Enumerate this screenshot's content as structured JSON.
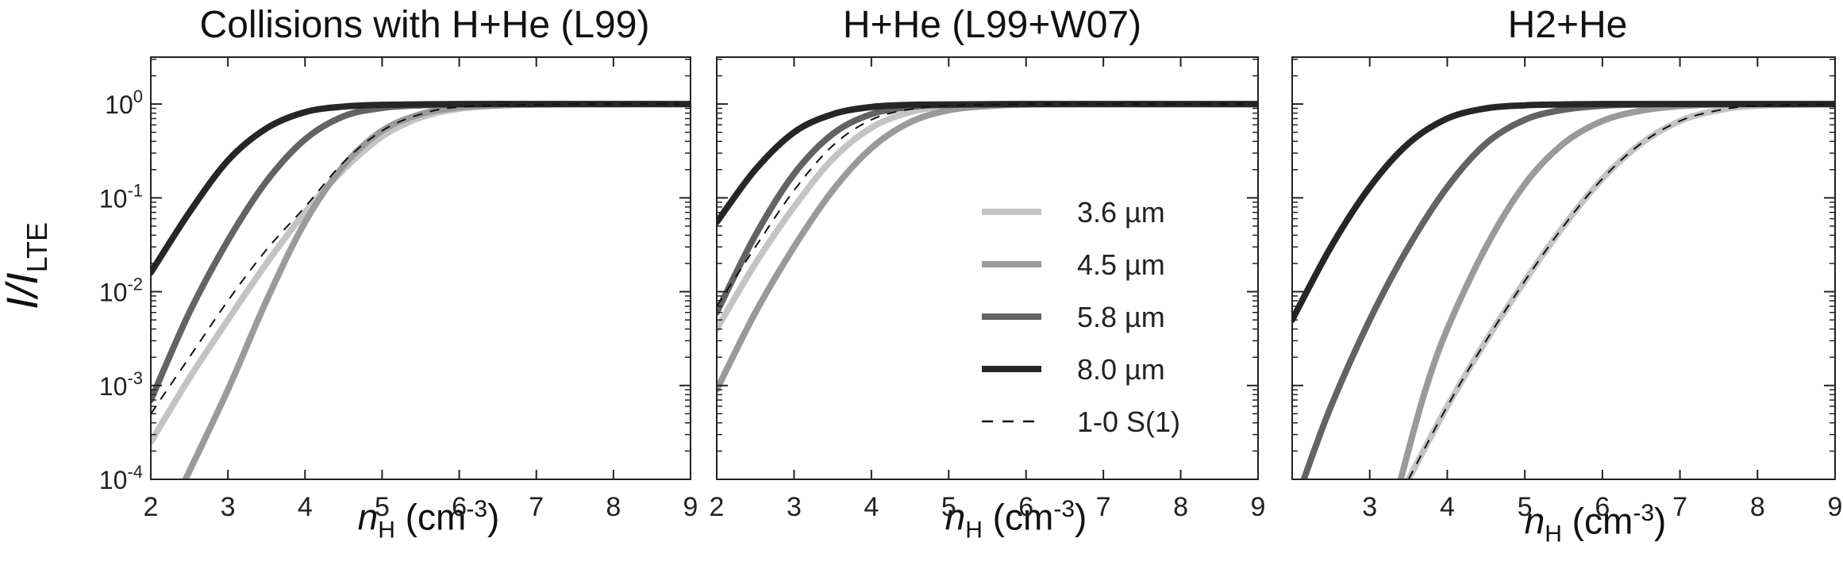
{
  "ylabel_main": "I/I",
  "ylabel_sub": "LTE",
  "xlabel_main": "n",
  "xlabel_sub": "H",
  "xlabel_units": " (cm",
  "xlabel_exp": "-3",
  "xlabel_close": ")",
  "legend": [
    {
      "label": "3.6 µm",
      "color": "#c4c4c4"
    },
    {
      "label": "4.5 µm",
      "color": "#9a9a9a"
    },
    {
      "label": "5.8 µm",
      "color": "#636363"
    },
    {
      "label": "8.0 µm",
      "color": "#262626"
    },
    {
      "label": "1-0 S(1)",
      "color": "#111111",
      "dashed": true
    }
  ],
  "chart_data": [
    {
      "type": "line",
      "title": "Collisions with H+He (L99)",
      "xlabel": "nH (cm-3)",
      "ylabel": "I/I_LTE",
      "xlim": [
        2,
        9
      ],
      "ylim_log10": [
        -4,
        0.5
      ],
      "yscale": "log",
      "xticks": [
        "2",
        "3",
        "4",
        "5",
        "6",
        "7",
        "8",
        "9"
      ],
      "series": [
        {
          "name": "8.0 µm",
          "x": [
            2,
            2.5,
            3,
            3.5,
            4,
            4.5,
            5,
            6,
            7,
            8,
            9
          ],
          "y": [
            0.016,
            0.07,
            0.25,
            0.55,
            0.82,
            0.94,
            0.98,
            1,
            1,
            1,
            1
          ]
        },
        {
          "name": "5.8 µm",
          "x": [
            2,
            2.5,
            3,
            3.5,
            4,
            4.5,
            5,
            5.5,
            6,
            7,
            8,
            9
          ],
          "y": [
            0.0007,
            0.006,
            0.035,
            0.15,
            0.42,
            0.74,
            0.91,
            0.97,
            0.99,
            1,
            1,
            1
          ]
        },
        {
          "name": "4.5 µm",
          "x": [
            2.45,
            3,
            3.5,
            4,
            4.5,
            5,
            5.5,
            6,
            6.5,
            7,
            8,
            9
          ],
          "y": [
            0.0001,
            0.0009,
            0.008,
            0.055,
            0.22,
            0.52,
            0.78,
            0.92,
            0.97,
            0.99,
            1,
            1
          ]
        },
        {
          "name": "3.6 µm",
          "x": [
            2,
            2.5,
            3,
            3.5,
            4,
            4.5,
            5,
            5.5,
            6,
            6.5,
            7,
            8,
            9
          ],
          "y": [
            0.00025,
            0.0012,
            0.005,
            0.02,
            0.07,
            0.2,
            0.45,
            0.72,
            0.89,
            0.96,
            0.99,
            1,
            1
          ]
        },
        {
          "name": "1-0 S(1)",
          "x": [
            2,
            2.5,
            3,
            3.5,
            4,
            4.5,
            5,
            5.5,
            6,
            7,
            8,
            9
          ],
          "y": [
            0.0005,
            0.002,
            0.008,
            0.028,
            0.08,
            0.24,
            0.52,
            0.78,
            0.93,
            0.99,
            1,
            1
          ]
        }
      ]
    },
    {
      "type": "line",
      "title": "H+He (L99+W07)",
      "xlabel": "nH (cm-3)",
      "ylabel": "I/I_LTE",
      "xlim": [
        2,
        9
      ],
      "ylim_log10": [
        -4,
        0.5
      ],
      "yscale": "log",
      "xticks": [
        "2",
        "3",
        "4",
        "5",
        "6",
        "7",
        "8",
        "9"
      ],
      "series": [
        {
          "name": "8.0 µm",
          "x": [
            2,
            2.5,
            3,
            3.5,
            4,
            4.5,
            5,
            6,
            7,
            8,
            9
          ],
          "y": [
            0.055,
            0.2,
            0.5,
            0.78,
            0.93,
            0.98,
            0.99,
            1,
            1,
            1,
            1
          ]
        },
        {
          "name": "5.8 µm",
          "x": [
            2,
            2.5,
            3,
            3.5,
            4,
            4.5,
            5,
            6,
            7,
            8,
            9
          ],
          "y": [
            0.006,
            0.04,
            0.18,
            0.48,
            0.78,
            0.93,
            0.98,
            1,
            1,
            1,
            1
          ]
        },
        {
          "name": "4.5 µm",
          "x": [
            2,
            2.5,
            3,
            3.5,
            4,
            4.5,
            5,
            5.5,
            6,
            7,
            8,
            9
          ],
          "y": [
            0.0009,
            0.006,
            0.03,
            0.12,
            0.34,
            0.64,
            0.86,
            0.95,
            0.99,
            1,
            1,
            1
          ]
        },
        {
          "name": "3.6 µm",
          "x": [
            2,
            2.5,
            3,
            3.5,
            4,
            4.5,
            5,
            6,
            7,
            8,
            9
          ],
          "y": [
            0.004,
            0.02,
            0.08,
            0.26,
            0.56,
            0.82,
            0.94,
            0.99,
            1,
            1,
            1
          ]
        },
        {
          "name": "1-0 S(1)",
          "x": [
            2,
            2.5,
            3,
            3.5,
            4,
            4.5,
            5,
            6,
            7,
            8,
            9
          ],
          "y": [
            0.007,
            0.03,
            0.12,
            0.36,
            0.68,
            0.88,
            0.96,
            1,
            1,
            1,
            1
          ]
        }
      ]
    },
    {
      "type": "line",
      "title": "H2+He",
      "xlabel": "nH (cm-3)",
      "ylabel": "I/I_LTE",
      "xlim": [
        2,
        9
      ],
      "ylim_log10": [
        -4,
        0.5
      ],
      "yscale": "log",
      "xticks": [
        "3",
        "4",
        "5",
        "6",
        "7",
        "8",
        "9"
      ],
      "series": [
        {
          "name": "8.0 µm",
          "x": [
            2,
            2.5,
            3,
            3.5,
            4,
            4.5,
            5,
            5.5,
            6,
            7,
            8,
            9
          ],
          "y": [
            0.005,
            0.03,
            0.13,
            0.38,
            0.7,
            0.9,
            0.97,
            0.99,
            1,
            1,
            1,
            1
          ]
        },
        {
          "name": "5.8 µm",
          "x": [
            2.15,
            2.5,
            3,
            3.5,
            4,
            4.5,
            5,
            5.5,
            6,
            6.5,
            7,
            8,
            9
          ],
          "y": [
            0.0001,
            0.0006,
            0.005,
            0.03,
            0.13,
            0.38,
            0.68,
            0.87,
            0.96,
            0.99,
            1,
            1,
            1
          ]
        },
        {
          "name": "4.5 µm",
          "x": [
            3.4,
            3.7,
            4,
            4.5,
            5,
            5.5,
            6,
            6.5,
            7,
            7.5,
            8,
            9
          ],
          "y": [
            0.0001,
            0.0008,
            0.004,
            0.03,
            0.14,
            0.38,
            0.66,
            0.85,
            0.95,
            0.99,
            1,
            1
          ]
        },
        {
          "name": "3.6 µm",
          "x": [
            3.5,
            4,
            4.5,
            5,
            5.5,
            6,
            6.5,
            7,
            7.5,
            8,
            9
          ],
          "y": [
            0.0001,
            0.0006,
            0.003,
            0.013,
            0.05,
            0.16,
            0.38,
            0.66,
            0.86,
            0.96,
            1
          ]
        },
        {
          "name": "1-0 S(1)",
          "x": [
            3.5,
            4,
            4.5,
            5,
            5.5,
            6,
            6.5,
            7,
            7.5,
            8,
            9
          ],
          "y": [
            0.0001,
            0.0006,
            0.003,
            0.013,
            0.05,
            0.16,
            0.38,
            0.66,
            0.86,
            0.96,
            1
          ]
        }
      ]
    }
  ]
}
